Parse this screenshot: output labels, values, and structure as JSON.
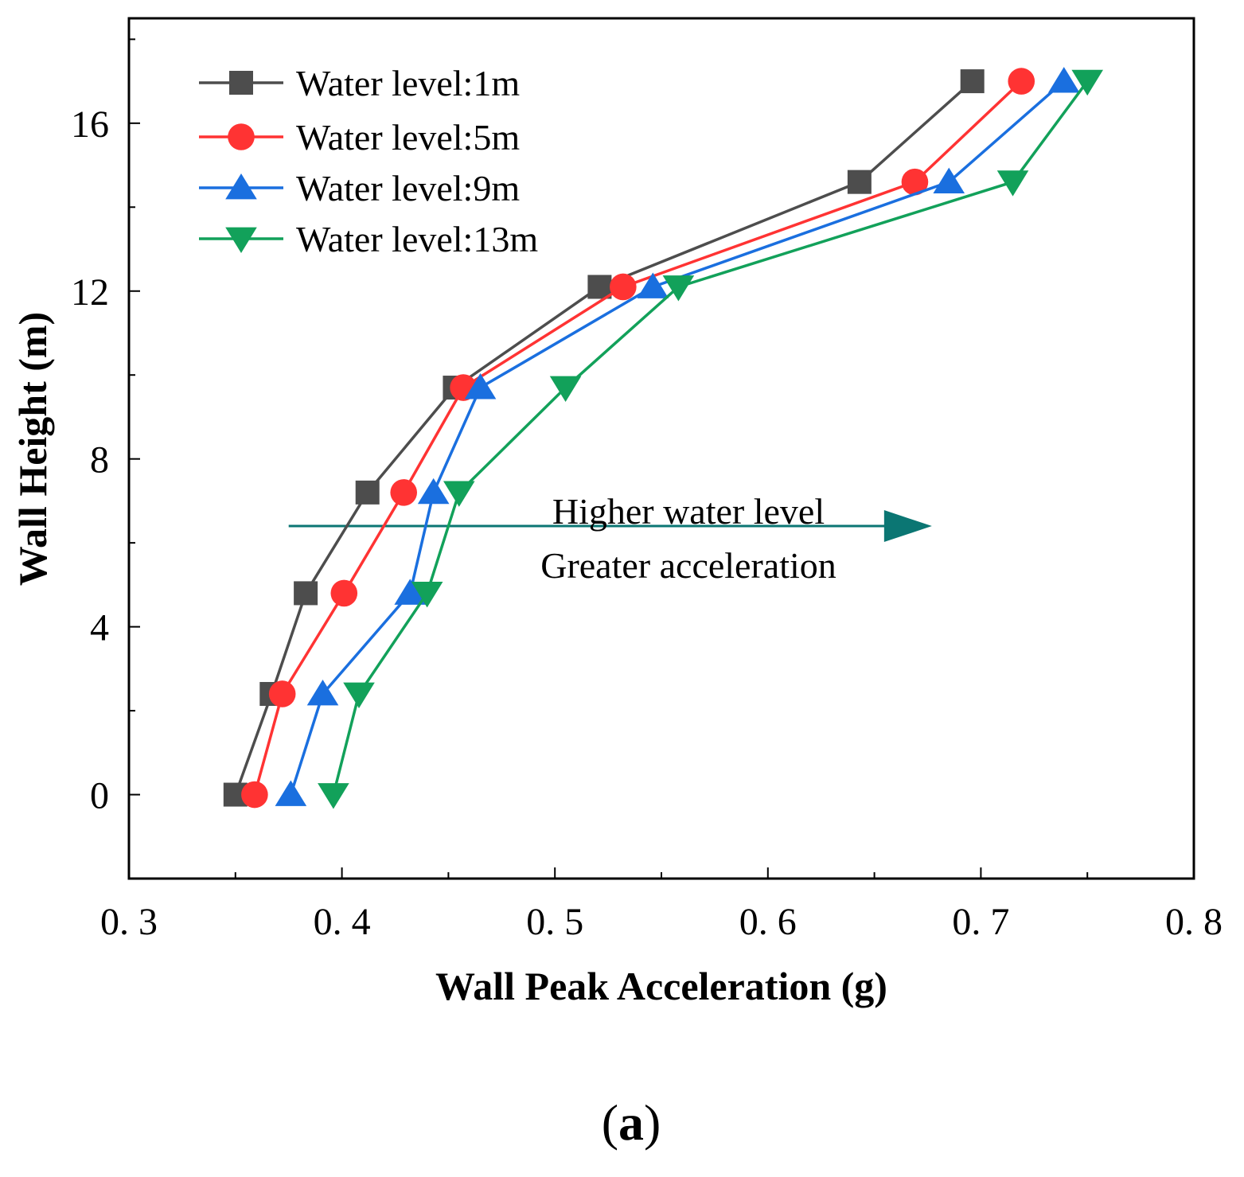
{
  "chart_data": {
    "type": "line",
    "xlabel": "Wall Peak Acceleration (g)",
    "ylabel": "Wall Height (m)",
    "xlim": [
      0.3,
      0.8
    ],
    "ylim": [
      -2,
      18.5
    ],
    "xticks": [
      0.3,
      0.4,
      0.5,
      0.6,
      0.7,
      0.8
    ],
    "xtick_labels": [
      "0. 3",
      "0. 4",
      "0. 5",
      "0. 6",
      "0. 7",
      "0. 8"
    ],
    "yticks": [
      0,
      4,
      8,
      12,
      16
    ],
    "ytick_labels": [
      "0",
      "4",
      "8",
      "12",
      "16"
    ],
    "grid": false,
    "legend_position": "top-left",
    "series": [
      {
        "name": "Water level:1m",
        "color": "#4d4d4d",
        "marker": "square",
        "x": [
          0.35,
          0.367,
          0.383,
          0.412,
          0.453,
          0.521,
          0.643,
          0.696
        ],
        "y": [
          0,
          2.4,
          4.8,
          7.2,
          9.7,
          12.1,
          14.6,
          17.0
        ]
      },
      {
        "name": "Water level:5m",
        "color": "#ff3333",
        "marker": "circle",
        "x": [
          0.359,
          0.372,
          0.401,
          0.429,
          0.457,
          0.532,
          0.669,
          0.719
        ],
        "y": [
          0,
          2.4,
          4.8,
          7.2,
          9.7,
          12.1,
          14.6,
          17.0
        ]
      },
      {
        "name": "Water level:9m",
        "color": "#1a6fdf",
        "marker": "triangle-up",
        "x": [
          0.376,
          0.391,
          0.432,
          0.443,
          0.465,
          0.546,
          0.685,
          0.739
        ],
        "y": [
          0,
          2.4,
          4.8,
          7.2,
          9.7,
          12.1,
          14.6,
          17.0
        ]
      },
      {
        "name": "Water level:13m",
        "color": "#12a15a",
        "marker": "triangle-down",
        "x": [
          0.396,
          0.408,
          0.44,
          0.455,
          0.505,
          0.558,
          0.715,
          0.75
        ],
        "y": [
          0,
          2.4,
          4.8,
          7.2,
          9.7,
          12.1,
          14.6,
          17.0
        ]
      }
    ],
    "annotations": [
      {
        "text": "Higher water level"
      },
      {
        "text": "Greater acceleration"
      }
    ],
    "arrow": {
      "from_x": 0.375,
      "to_x": 0.677,
      "y": 6.4,
      "color": "#0b7673"
    }
  },
  "caption": {
    "open": "(",
    "letter": "a",
    "close": ")"
  }
}
